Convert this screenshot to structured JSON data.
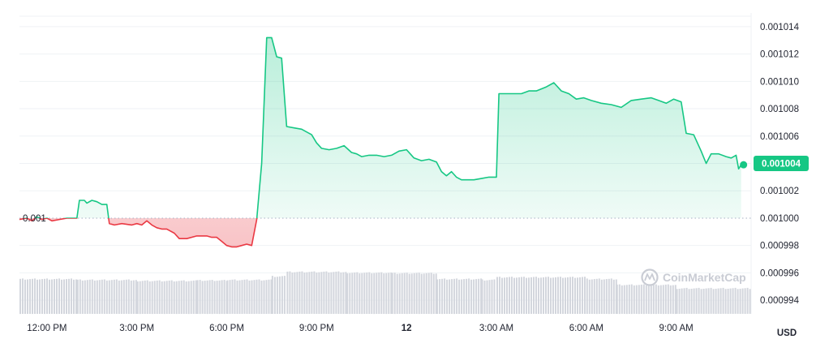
{
  "chart_data": {
    "type": "line",
    "currency_label": "USD",
    "reference_label": "0.001",
    "reference_value": 0.001,
    "current_price_label": "0.001004",
    "current_price": 0.0010039,
    "watermark": "CoinMarketCap",
    "y_ticks": [
      {
        "value": 0.001014,
        "label": "0.001014"
      },
      {
        "value": 0.001012,
        "label": "0.001012"
      },
      {
        "value": 0.00101,
        "label": "0.001010"
      },
      {
        "value": 0.001008,
        "label": "0.001008"
      },
      {
        "value": 0.001006,
        "label": "0.001006"
      },
      {
        "value": 0.001004,
        "label": "0.001004"
      },
      {
        "value": 0.001002,
        "label": "0.001002"
      },
      {
        "value": 0.001,
        "label": "0.001000"
      },
      {
        "value": 0.000998,
        "label": "0.000998"
      },
      {
        "value": 0.000996,
        "label": "0.000996"
      },
      {
        "value": 0.000994,
        "label": "0.000994"
      }
    ],
    "x_ticks": [
      {
        "time": "12:00",
        "label": "12:00 PM",
        "bold": false
      },
      {
        "time": "15:00",
        "label": "3:00 PM",
        "bold": false
      },
      {
        "time": "18:00",
        "label": "6:00 PM",
        "bold": false
      },
      {
        "time": "21:00",
        "label": "9:00 PM",
        "bold": false
      },
      {
        "time": "24:00",
        "label": "12",
        "bold": true
      },
      {
        "time": "27:00",
        "label": "3:00 AM",
        "bold": false
      },
      {
        "time": "30:00",
        "label": "6:00 AM",
        "bold": false
      },
      {
        "time": "33:00",
        "label": "9:00 AM",
        "bold": false
      }
    ],
    "x_range": [
      "11:05",
      "35:30"
    ],
    "y_range": [
      0.000993,
      0.001015
    ],
    "colors": {
      "up": "#16c784",
      "down": "#ea3943",
      "volume": "#d3d6dd",
      "grid": "#eff2f5"
    },
    "price_series": [
      [
        "11:05",
        0.0009999
      ],
      [
        "11:20",
        0.001
      ],
      [
        "11:30",
        0.0009998
      ],
      [
        "11:40",
        0.0010001
      ],
      [
        "11:50",
        0.0009999
      ],
      [
        "12:00",
        0.001
      ],
      [
        "12:10",
        0.0009998
      ],
      [
        "12:25",
        0.0009999
      ],
      [
        "12:40",
        0.001
      ],
      [
        "13:00",
        0.001
      ],
      [
        "13:05",
        0.0010013
      ],
      [
        "13:15",
        0.0010013
      ],
      [
        "13:20",
        0.0010011
      ],
      [
        "13:30",
        0.0010013
      ],
      [
        "13:40",
        0.0010012
      ],
      [
        "13:50",
        0.001001
      ],
      [
        "14:00",
        0.001001
      ],
      [
        "14:05",
        0.0009996
      ],
      [
        "14:15",
        0.0009995
      ],
      [
        "14:30",
        0.0009996
      ],
      [
        "14:50",
        0.0009995
      ],
      [
        "15:00",
        0.0009996
      ],
      [
        "15:10",
        0.0009995
      ],
      [
        "15:20",
        0.0009998
      ],
      [
        "15:30",
        0.0009995
      ],
      [
        "15:40",
        0.0009993
      ],
      [
        "15:50",
        0.0009992
      ],
      [
        "16:00",
        0.0009992
      ],
      [
        "16:15",
        0.0009989
      ],
      [
        "16:25",
        0.0009985
      ],
      [
        "16:40",
        0.0009985
      ],
      [
        "17:00",
        0.0009987
      ],
      [
        "17:20",
        0.0009987
      ],
      [
        "17:30",
        0.0009986
      ],
      [
        "17:40",
        0.0009986
      ],
      [
        "17:50",
        0.0009983
      ],
      [
        "18:00",
        0.000998
      ],
      [
        "18:10",
        0.0009979
      ],
      [
        "18:20",
        0.0009979
      ],
      [
        "18:30",
        0.000998
      ],
      [
        "18:40",
        0.0009981
      ],
      [
        "18:50",
        0.000998
      ],
      [
        "19:00",
        0.0009999
      ],
      [
        "19:10",
        0.001004
      ],
      [
        "19:20",
        0.0010132
      ],
      [
        "19:30",
        0.0010132
      ],
      [
        "19:40",
        0.0010118
      ],
      [
        "19:50",
        0.0010117
      ],
      [
        "20:00",
        0.0010067
      ],
      [
        "20:15",
        0.0010066
      ],
      [
        "20:30",
        0.0010065
      ],
      [
        "20:50",
        0.0010061
      ],
      [
        "21:00",
        0.0010055
      ],
      [
        "21:10",
        0.0010051
      ],
      [
        "21:25",
        0.001005
      ],
      [
        "21:40",
        0.0010051
      ],
      [
        "21:55",
        0.0010053
      ],
      [
        "22:10",
        0.0010048
      ],
      [
        "22:20",
        0.0010047
      ],
      [
        "22:30",
        0.0010045
      ],
      [
        "22:45",
        0.0010046
      ],
      [
        "23:00",
        0.0010046
      ],
      [
        "23:15",
        0.0010045
      ],
      [
        "23:30",
        0.0010046
      ],
      [
        "23:45",
        0.0010049
      ],
      [
        "24:00",
        0.001005
      ],
      [
        "24:15",
        0.0010044
      ],
      [
        "24:30",
        0.0010042
      ],
      [
        "24:45",
        0.0010043
      ],
      [
        "25:00",
        0.0010041
      ],
      [
        "25:10",
        0.0010034
      ],
      [
        "25:20",
        0.0010031
      ],
      [
        "25:30",
        0.0010034
      ],
      [
        "25:40",
        0.001003
      ],
      [
        "25:50",
        0.0010028
      ],
      [
        "26:00",
        0.0010028
      ],
      [
        "26:15",
        0.0010028
      ],
      [
        "26:30",
        0.0010029
      ],
      [
        "26:45",
        0.001003
      ],
      [
        "27:00",
        0.001003
      ],
      [
        "27:05",
        0.0010091
      ],
      [
        "27:15",
        0.0010091
      ],
      [
        "27:30",
        0.0010091
      ],
      [
        "27:50",
        0.0010091
      ],
      [
        "28:05",
        0.0010093
      ],
      [
        "28:20",
        0.0010093
      ],
      [
        "28:40",
        0.0010096
      ],
      [
        "28:55",
        0.0010099
      ],
      [
        "29:10",
        0.0010093
      ],
      [
        "29:25",
        0.0010091
      ],
      [
        "29:40",
        0.0010087
      ],
      [
        "29:55",
        0.0010088
      ],
      [
        "30:10",
        0.0010086
      ],
      [
        "30:30",
        0.0010084
      ],
      [
        "30:50",
        0.0010083
      ],
      [
        "31:10",
        0.0010081
      ],
      [
        "31:30",
        0.0010086
      ],
      [
        "31:50",
        0.0010087
      ],
      [
        "32:10",
        0.0010088
      ],
      [
        "32:25",
        0.0010086
      ],
      [
        "32:40",
        0.0010084
      ],
      [
        "32:55",
        0.0010087
      ],
      [
        "33:10",
        0.0010085
      ],
      [
        "33:20",
        0.0010062
      ],
      [
        "33:35",
        0.0010061
      ],
      [
        "33:50",
        0.0010049
      ],
      [
        "34:00",
        0.001004
      ],
      [
        "34:10",
        0.0010047
      ],
      [
        "34:25",
        0.0010047
      ],
      [
        "34:40",
        0.0010045
      ],
      [
        "34:50",
        0.0010044
      ],
      [
        "35:00",
        0.0010046
      ],
      [
        "35:05",
        0.0010036
      ],
      [
        "35:10",
        0.0010039
      ]
    ],
    "volume_bars": [
      {
        "from": "11:05",
        "to": "13:00",
        "relative": 0.78
      },
      {
        "from": "13:00",
        "to": "15:00",
        "relative": 0.76
      },
      {
        "from": "15:00",
        "to": "17:00",
        "relative": 0.74
      },
      {
        "from": "17:00",
        "to": "18:00",
        "relative": 0.75
      },
      {
        "from": "18:00",
        "to": "19:30",
        "relative": 0.76
      },
      {
        "from": "19:30",
        "to": "20:00",
        "relative": 0.84
      },
      {
        "from": "20:00",
        "to": "22:00",
        "relative": 0.94
      },
      {
        "from": "22:00",
        "to": "23:30",
        "relative": 0.92
      },
      {
        "from": "23:30",
        "to": "25:00",
        "relative": 0.91
      },
      {
        "from": "25:00",
        "to": "26:30",
        "relative": 0.78
      },
      {
        "from": "26:30",
        "to": "27:00",
        "relative": 0.76
      },
      {
        "from": "27:00",
        "to": "30:00",
        "relative": 0.82
      },
      {
        "from": "30:00",
        "to": "31:00",
        "relative": 0.78
      },
      {
        "from": "31:00",
        "to": "33:00",
        "relative": 0.65
      },
      {
        "from": "33:00",
        "to": "35:30",
        "relative": 0.57
      }
    ]
  }
}
